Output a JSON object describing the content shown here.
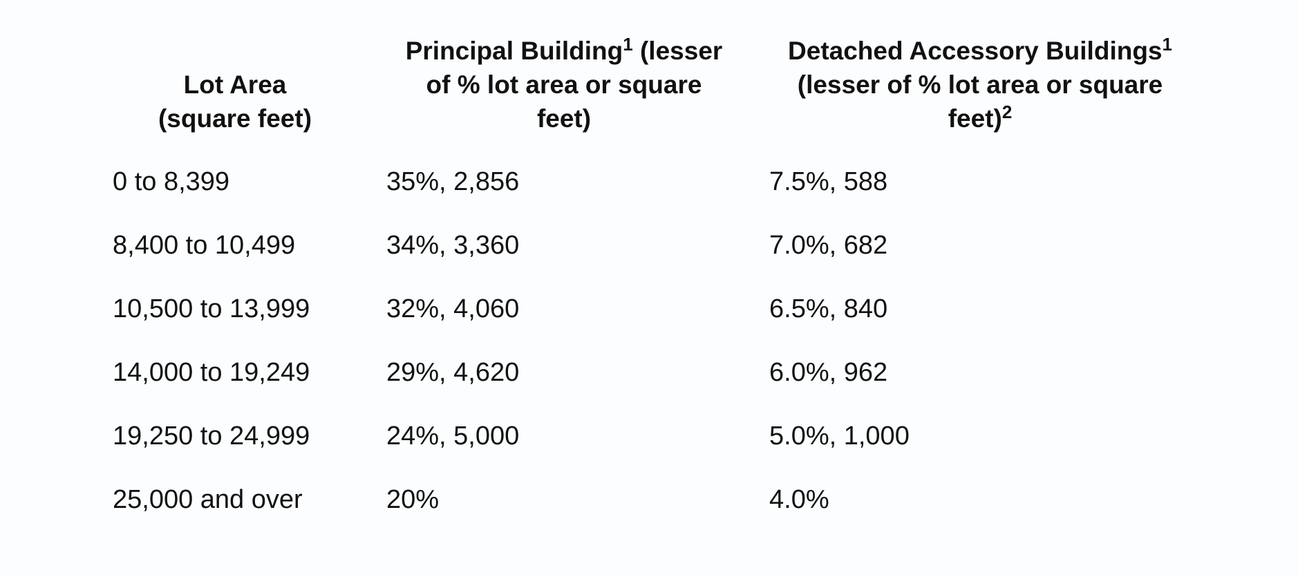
{
  "headers": {
    "lot_area": {
      "line1": "Lot Area",
      "line2": "(square feet)"
    },
    "principal": {
      "line1_text": "Principal Building",
      "line1_sup": "1",
      "line1_tail": " (lesser",
      "line2": "of % lot area or square",
      "line3": "feet)"
    },
    "detached": {
      "line1_text": "Detached Accessory Buildings",
      "line1_sup": "1",
      "line2": "(lesser of % lot area or square",
      "line3_text": "feet)",
      "line3_sup": "2"
    }
  },
  "rows": [
    {
      "lot_area": "0 to 8,399",
      "principal": "35%, 2,856",
      "detached": "7.5%, 588"
    },
    {
      "lot_area": "8,400 to 10,499",
      "principal": "34%, 3,360",
      "detached": "7.0%, 682"
    },
    {
      "lot_area": "10,500 to 13,999",
      "principal": "32%, 4,060",
      "detached": "6.5%, 840"
    },
    {
      "lot_area": "14,000 to 19,249",
      "principal": "29%, 4,620",
      "detached": "6.0%, 962"
    },
    {
      "lot_area": "19,250 to 24,999",
      "principal": "24%, 5,000",
      "detached": "5.0%, 1,000"
    },
    {
      "lot_area": "25,000 and over",
      "principal": "20%",
      "detached": "4.0%"
    }
  ]
}
